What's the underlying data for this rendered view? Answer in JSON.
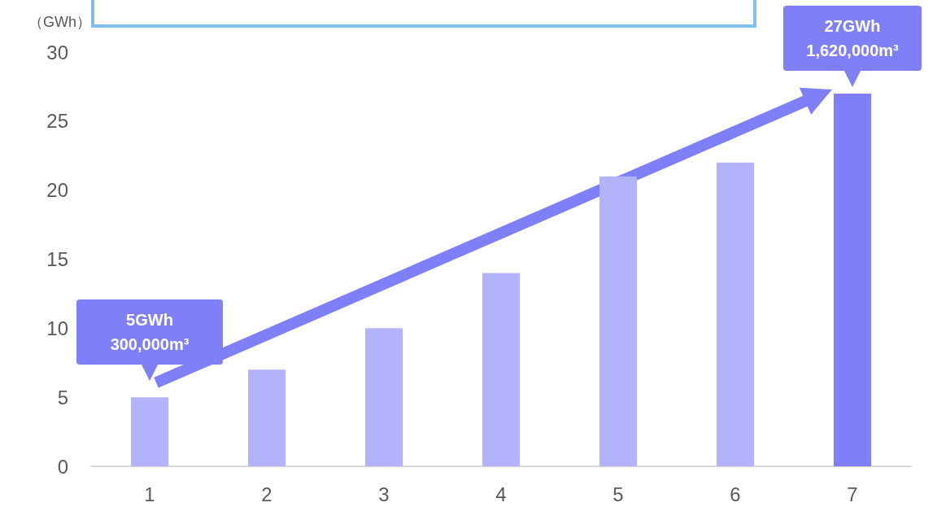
{
  "chart_data": {
    "type": "bar",
    "ylabel": "（GWh）",
    "categories": [
      "1",
      "2",
      "3",
      "4",
      "5",
      "6",
      "7"
    ],
    "values": [
      5,
      7,
      10,
      14,
      21,
      22,
      27
    ],
    "colors": [
      "#b3b3fb",
      "#b3b3fb",
      "#b3b3fb",
      "#b3b3fb",
      "#b3b3fb",
      "#b3b3fb",
      "#7f7ff9"
    ],
    "ylim": [
      0,
      30
    ],
    "yticks": [
      0,
      5,
      10,
      15,
      20,
      25,
      30
    ],
    "grid": false,
    "annotations": [
      {
        "text": "5GWh\n300,000m³",
        "x": "1",
        "y": 5
      },
      {
        "text": "27GWh\n1,620,000m³",
        "x": "7",
        "y": 27
      }
    ]
  }
}
